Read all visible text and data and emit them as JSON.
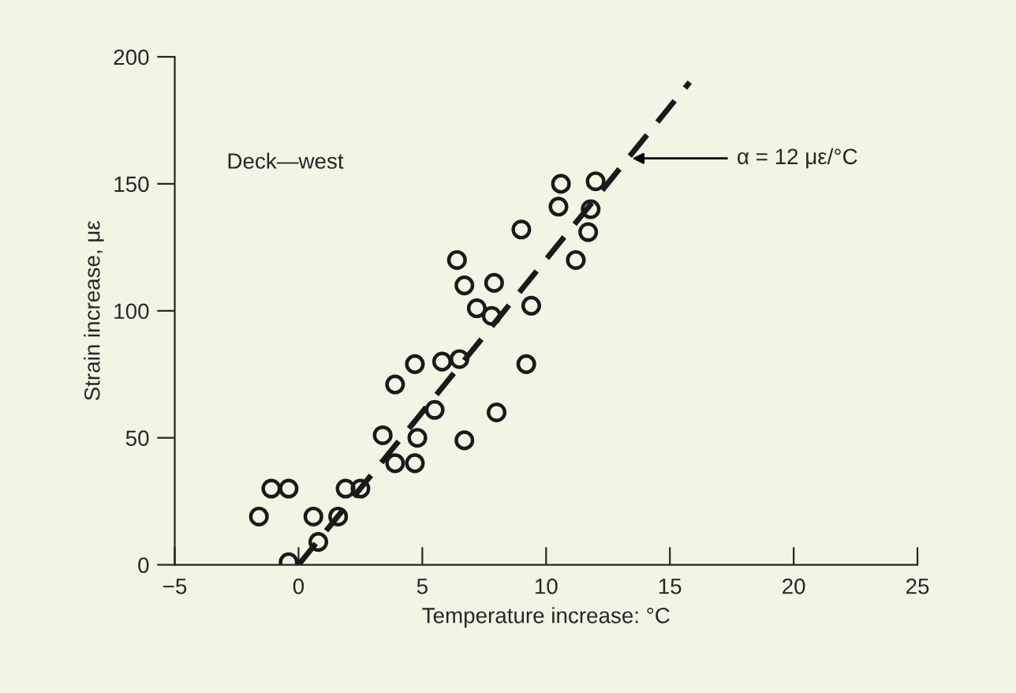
{
  "chart_data": {
    "type": "scatter",
    "xlabel": "Temperature increase: °C",
    "ylabel": "Strain increase, με",
    "annotations": [
      "Deck—west",
      {
        "text": "α = 12 με/°C",
        "x": 13.3,
        "y": 160
      }
    ],
    "x": [
      -1.6,
      -1.1,
      -0.4,
      -0.4,
      0.6,
      0.8,
      1.6,
      1.9,
      2.5,
      3.4,
      3.9,
      4.7,
      4.8,
      3.9,
      4.7,
      5.5,
      5.8,
      6.5,
      6.7,
      8.0,
      9.2,
      6.4,
      6.7,
      7.2,
      7.9,
      7.8,
      9.4,
      9.0,
      10.6,
      10.5,
      12.0,
      11.8,
      11.7,
      11.2
    ],
    "series": [
      {
        "color": "#1a1a1a",
        "marker": "circle",
        "values": [
          19,
          30,
          30,
          1,
          19,
          9,
          19,
          30,
          30,
          51,
          40,
          40,
          50,
          71,
          79,
          61,
          80,
          81,
          49,
          60,
          79,
          120,
          110,
          101,
          111,
          98,
          102,
          132,
          150,
          141,
          151,
          140,
          131,
          120
        ]
      },
      {
        "type": "line",
        "color": "#1a1a1a",
        "line_style": "dashed",
        "x": [
          0,
          15.8
        ],
        "values": [
          0,
          190
        ]
      }
    ],
    "xlim": [
      -5,
      25
    ],
    "ylim": [
      0,
      200
    ],
    "xticks": [
      {
        "value": -5,
        "label": "−5"
      },
      0,
      5,
      10,
      15,
      20,
      25
    ],
    "yticks": [
      0,
      50,
      100,
      150,
      200
    ],
    "grid": false,
    "legend": false
  }
}
